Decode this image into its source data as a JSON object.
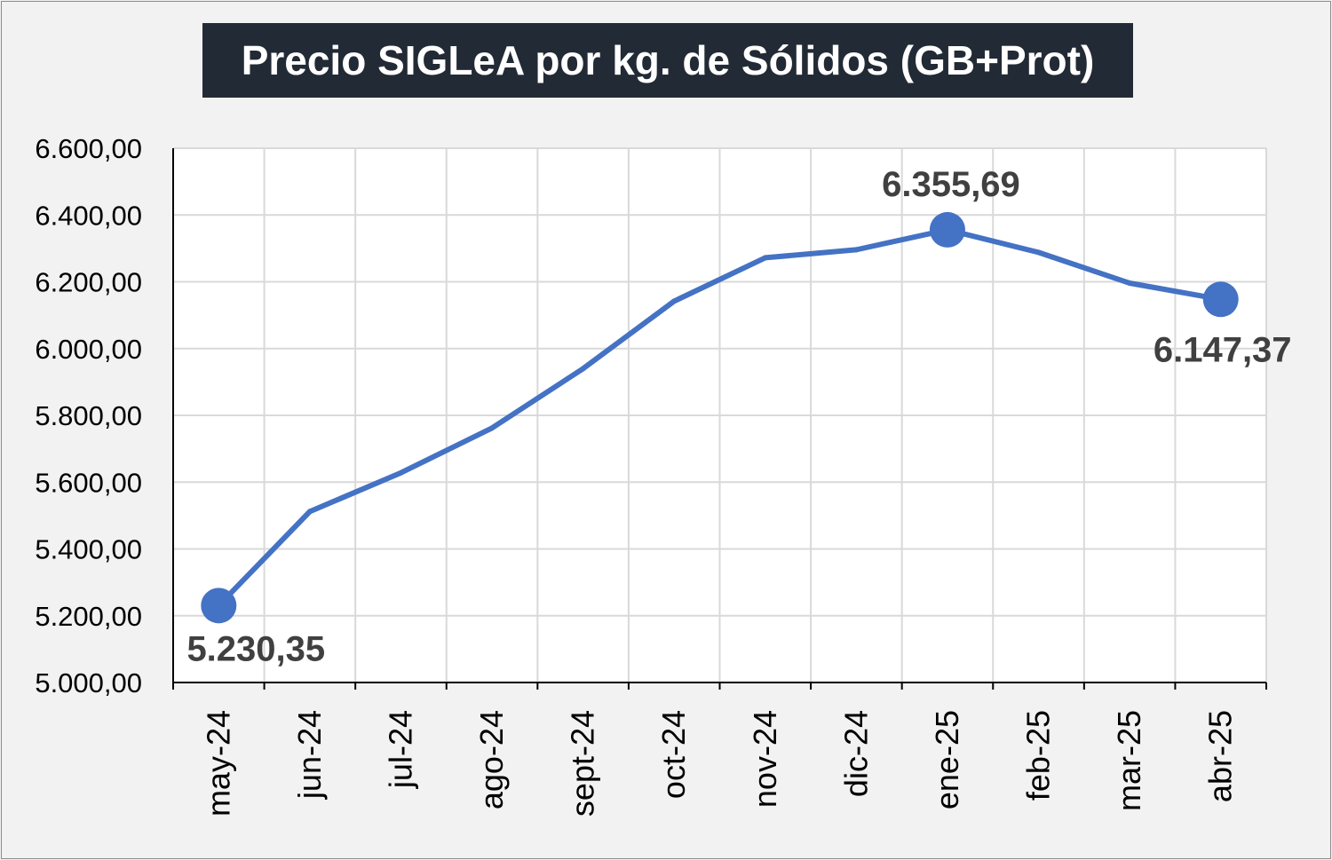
{
  "chart_data": {
    "type": "line",
    "title": "Precio SIGLeA por kg. de Sólidos (GB+Prot)",
    "categories": [
      "may-24",
      "jun-24",
      "jul-24",
      "ago-24",
      "sept-24",
      "oct-24",
      "nov-24",
      "dic-24",
      "ene-25",
      "feb-25",
      "mar-25",
      "abr-25"
    ],
    "series": [
      {
        "values": [
          5230.35,
          5512,
          5628,
          5762,
          5940,
          6142,
          6272,
          6296,
          6355.69,
          6288,
          6196,
          6147.37
        ],
        "color": "#4472c4"
      }
    ],
    "data_labels": [
      {
        "index": 0,
        "text": "5.230,35"
      },
      {
        "index": 8,
        "text": "6.355,69"
      },
      {
        "index": 11,
        "text": "6.147,37"
      }
    ],
    "highlight_indices": [
      0,
      8,
      11
    ],
    "ylim": [
      5000,
      6600
    ],
    "yticks": [
      5000,
      5200,
      5400,
      5600,
      5800,
      6000,
      6200,
      6400,
      6600
    ],
    "ytick_labels": [
      "5.000,00",
      "5.200,00",
      "5.400,00",
      "5.600,00",
      "5.800,00",
      "6.000,00",
      "6.200,00",
      "6.400,00",
      "6.600,00"
    ],
    "xlabel": "",
    "ylabel": "",
    "grid": true,
    "legend": "none"
  }
}
